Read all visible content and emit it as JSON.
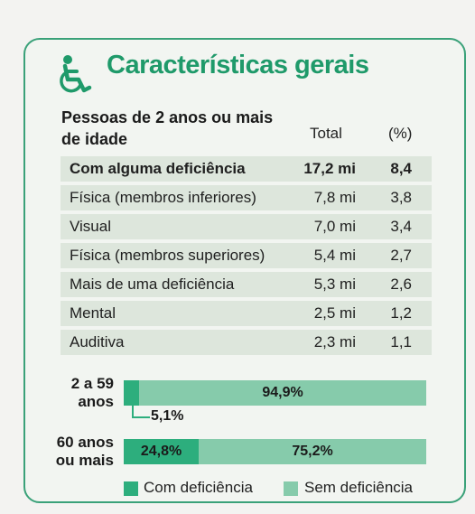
{
  "title": "Características gerais",
  "header": {
    "population_label": "Pessoas de 2 anos ou mais de idade",
    "total_label": "Total",
    "percent_label": "(%)"
  },
  "rows": [
    {
      "label": "Com alguma deficiência",
      "total": "17,2 mi",
      "percent": "8,4",
      "bold": true
    },
    {
      "label": "Física (membros inferiores)",
      "total": "7,8 mi",
      "percent": "3,8"
    },
    {
      "label": "Visual",
      "total": "7,0 mi",
      "percent": "3,4"
    },
    {
      "label": "Física (membros superiores)",
      "total": "5,4 mi",
      "percent": "2,7"
    },
    {
      "label": "Mais de uma deficiência",
      "total": "5,3 mi",
      "percent": "2,6"
    },
    {
      "label": "Mental",
      "total": "2,5 mi",
      "percent": "1,2"
    },
    {
      "label": "Auditiva",
      "total": "2,3 mi",
      "percent": "1,1"
    }
  ],
  "colors": {
    "com": "#2dae7d",
    "sem": "#86cbab",
    "accent": "#1f9a6a",
    "row_bg": "#dde6dc"
  },
  "chart_data": {
    "type": "bar",
    "stacked": true,
    "orientation": "horizontal",
    "categories": [
      "2 a 59 anos",
      "60 anos ou mais"
    ],
    "series": [
      {
        "name": "Com deficiência",
        "values": [
          5.1,
          24.8
        ],
        "labels": [
          "5,1%",
          "24,8%"
        ]
      },
      {
        "name": "Sem deficiência",
        "values": [
          94.9,
          75.2
        ],
        "labels": [
          "94,9%",
          "75,2%"
        ]
      }
    ],
    "xlim": [
      0,
      100
    ],
    "legend_position": "bottom"
  },
  "legend": {
    "com": "Com deficiência",
    "sem": "Sem deficiência"
  },
  "groups": [
    {
      "line1": "2 a 59",
      "line2": "anos"
    },
    {
      "line1": "60 anos",
      "line2": "ou mais"
    }
  ],
  "icons": {
    "title": "wheelchair-icon"
  }
}
